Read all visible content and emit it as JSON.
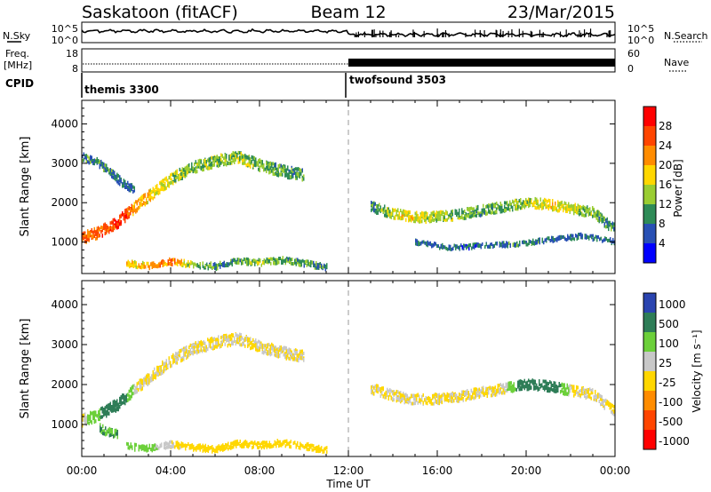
{
  "header": {
    "station": "Saskatoon (fitACF)",
    "beam": "Beam 12",
    "date": "23/Mar/2015"
  },
  "top_panels": {
    "nsky_label": "N.Sky",
    "nsearch_label": "N.Search",
    "freq_label_1": "Freq.",
    "freq_label_2": "[MHz]",
    "nave_label": "Nave",
    "cpid_label": "CPID",
    "nsky_ticks": [
      "10^5",
      "10^0"
    ],
    "nsearch_ticks": [
      "10^5",
      "10^0"
    ],
    "freq_ticks": [
      "18",
      "8"
    ],
    "nave_ticks": [
      "60",
      "0"
    ],
    "cpid_segments": [
      {
        "label": "themis 3300",
        "start_hour": 0,
        "end_hour": 11.85
      },
      {
        "label": "twofsound 3503",
        "start_hour": 11.85,
        "end_hour": 24
      }
    ]
  },
  "chart_data": [
    {
      "type": "heatmap",
      "title": "",
      "xlabel": "Time UT",
      "ylabel": "Slant Range [km]",
      "x_ticks": [
        "00:00",
        "04:00",
        "08:00",
        "12:00",
        "16:00",
        "20:00",
        "00:00"
      ],
      "xlim": [
        0,
        24
      ],
      "y_ticks": [
        1000,
        2000,
        3000,
        4000
      ],
      "ylim": [
        200,
        4600
      ],
      "colorbar": {
        "label": "Power [dB]",
        "ticks": [
          4,
          8,
          12,
          16,
          20,
          24,
          28
        ],
        "range": [
          0,
          32
        ],
        "colors": [
          "#0000ff",
          "#2850b4",
          "#2e8b57",
          "#9acd32",
          "#ffd700",
          "#ff8c00",
          "#ff4500",
          "#ff0000"
        ]
      },
      "echo_bands": [
        {
          "x": [
            0.0,
            0.8,
            1.6,
            2.4,
            3.2,
            4.0,
            5.0,
            6.0,
            7.0,
            8.0,
            9.0,
            10.0
          ],
          "range": [
            1100,
            1250,
            1500,
            1900,
            2250,
            2600,
            2900,
            3050,
            3150,
            2950,
            2800,
            2700
          ],
          "width": 230,
          "power": [
            24,
            24,
            28,
            22,
            18,
            15,
            13,
            13,
            14,
            12,
            11,
            10
          ]
        },
        {
          "x": [
            0.0,
            0.6,
            1.2,
            1.8,
            2.4
          ],
          "range": [
            3150,
            3050,
            2800,
            2500,
            2300
          ],
          "width": 160,
          "power": [
            10,
            9,
            9,
            8,
            8
          ]
        },
        {
          "x": [
            2.0,
            3.0,
            4.0,
            5.0,
            6.0,
            7.0,
            8.0,
            9.0,
            10.0,
            11.0
          ],
          "range": [
            450,
            400,
            500,
            430,
            380,
            520,
            480,
            540,
            460,
            350
          ],
          "width": 120,
          "power": [
            18,
            20,
            24,
            12,
            10,
            11,
            14,
            12,
            10,
            9
          ]
        },
        {
          "x": [
            13.0,
            13.8,
            14.6,
            15.4,
            16.2,
            17.0,
            18.0,
            19.0,
            20.0,
            21.0,
            22.0,
            23.0,
            24.0
          ],
          "range": [
            1900,
            1750,
            1650,
            1620,
            1650,
            1700,
            1800,
            1900,
            2000,
            1950,
            1850,
            1750,
            1300
          ],
          "width": 200,
          "power": [
            10,
            14,
            18,
            16,
            14,
            12,
            11,
            12,
            14,
            18,
            15,
            12,
            10
          ]
        },
        {
          "x": [
            15.0,
            16.5,
            18.0,
            19.5,
            21.0,
            22.5,
            24.0
          ],
          "range": [
            1000,
            850,
            900,
            950,
            1050,
            1150,
            1000
          ],
          "width": 90,
          "power": [
            8,
            7,
            8,
            9,
            8,
            8,
            7
          ]
        }
      ]
    },
    {
      "type": "heatmap",
      "title": "",
      "xlabel": "Time UT",
      "ylabel": "Slant Range [km]",
      "x_ticks": [
        "00:00",
        "04:00",
        "08:00",
        "12:00",
        "16:00",
        "20:00",
        "00:00"
      ],
      "xlim": [
        0,
        24
      ],
      "y_ticks": [
        1000,
        2000,
        3000,
        4000
      ],
      "ylim": [
        200,
        4600
      ],
      "colorbar": {
        "label": "Velocity [m s⁻¹]",
        "ticks": [
          1000,
          500,
          100,
          25,
          -25,
          -100,
          -500,
          -1000
        ],
        "colors": [
          "#2a44b0",
          "#2e7d57",
          "#6cd03a",
          "#c8c8c8",
          "#ffd700",
          "#ff8c00",
          "#ff4500",
          "#ff0000"
        ]
      },
      "echo_bands": [
        {
          "x": [
            0.0,
            0.8,
            1.6,
            2.4,
            3.2,
            4.0,
            5.0,
            6.0,
            7.0,
            8.0,
            9.0,
            10.0
          ],
          "range": [
            1100,
            1250,
            1500,
            1900,
            2250,
            2600,
            2900,
            3050,
            3150,
            2950,
            2800,
            2700
          ],
          "width": 230,
          "velocity": [
            -25,
            300,
            600,
            0,
            0,
            0,
            0,
            0,
            0,
            0,
            0,
            0
          ]
        },
        {
          "x": [
            0.8,
            1.2,
            1.6
          ],
          "range": [
            900,
            800,
            750
          ],
          "width": 160,
          "velocity": [
            300,
            300,
            300
          ]
        },
        {
          "x": [
            2.0,
            3.0,
            4.0,
            5.0,
            6.0,
            7.0,
            8.0,
            9.0,
            10.0,
            11.0
          ],
          "range": [
            450,
            400,
            500,
            430,
            380,
            520,
            480,
            540,
            460,
            350
          ],
          "width": 120,
          "velocity": [
            100,
            100,
            0,
            -40,
            -40,
            -40,
            -40,
            -40,
            -40,
            -40
          ]
        },
        {
          "x": [
            13.0,
            13.8,
            14.6,
            15.4,
            16.2,
            17.0,
            18.0,
            19.0,
            20.0,
            21.0,
            22.0,
            23.0,
            24.0
          ],
          "range": [
            1900,
            1750,
            1650,
            1620,
            1650,
            1700,
            1800,
            1900,
            2000,
            1950,
            1850,
            1750,
            1300
          ],
          "width": 200,
          "velocity": [
            0,
            0,
            0,
            0,
            0,
            0,
            0,
            0,
            600,
            600,
            0,
            0,
            0
          ]
        }
      ]
    }
  ]
}
